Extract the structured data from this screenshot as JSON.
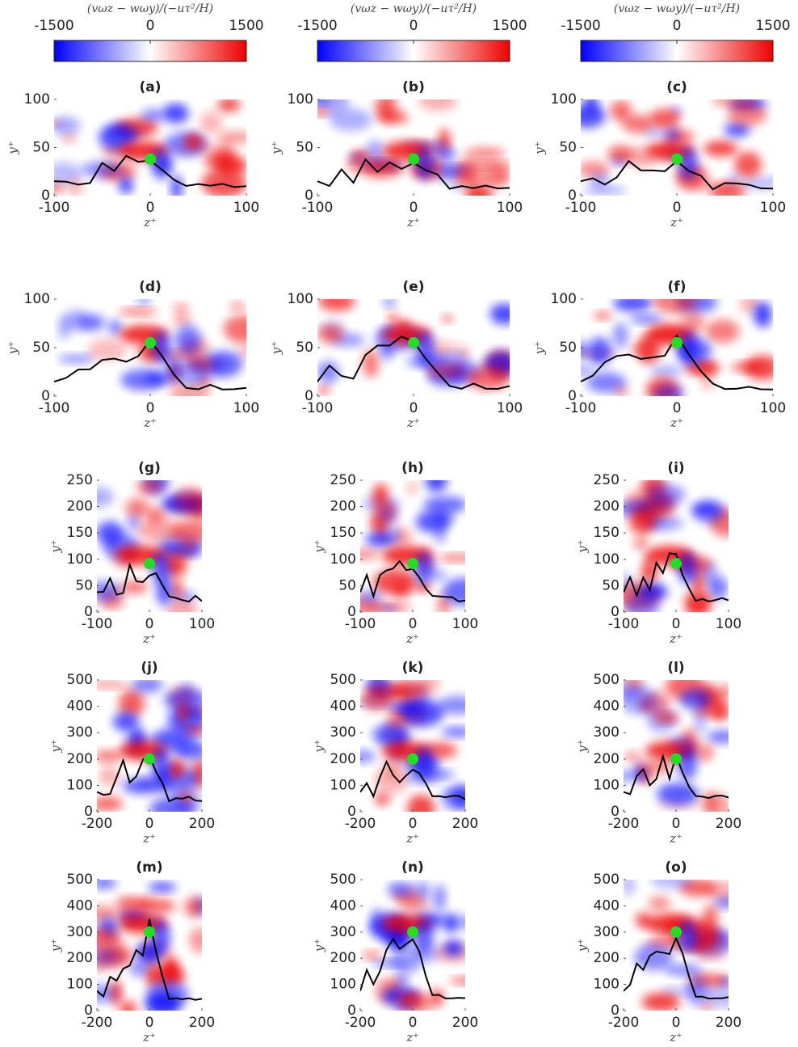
{
  "chart_data": [
    {
      "type": "heatmap",
      "title": "(a)",
      "xlabel": "z⁺",
      "ylabel": "y⁺",
      "xlim": [
        -100,
        100
      ],
      "ylim": [
        0,
        100
      ],
      "xticks": [
        -100,
        0,
        100
      ],
      "yticks": [
        0,
        50,
        100
      ],
      "point": [
        0,
        38
      ],
      "point_color": "#22dd22",
      "colorbar": {
        "label": "(vωz − wωy)/(−uτ²/H)",
        "lim": [
          -1500,
          1500
        ],
        "ticks": [
          -1500,
          0,
          1500
        ],
        "colors": [
          "#0000ff",
          "#ffffff",
          "#ee0000"
        ]
      }
    },
    {
      "type": "heatmap",
      "title": "(b)",
      "xlabel": "z⁺",
      "ylabel": "y⁺",
      "xlim": [
        -100,
        100
      ],
      "ylim": [
        0,
        100
      ],
      "xticks": [
        -100,
        0,
        100
      ],
      "yticks": [
        0,
        50,
        100
      ],
      "point": [
        0,
        38
      ],
      "point_color": "#22dd22",
      "colorbar": {
        "label": "(vωz − wωy)/(−uτ²/H)",
        "lim": [
          -1500,
          1500
        ],
        "ticks": [
          -1500,
          0,
          1500
        ],
        "colors": [
          "#0000ff",
          "#ffffff",
          "#ee0000"
        ]
      }
    },
    {
      "type": "heatmap",
      "title": "(c)",
      "xlabel": "z⁺",
      "ylabel": "y⁺",
      "xlim": [
        -100,
        100
      ],
      "ylim": [
        0,
        100
      ],
      "xticks": [
        -100,
        0,
        100
      ],
      "yticks": [
        0,
        50,
        100
      ],
      "point": [
        0,
        38
      ],
      "point_color": "#22dd22",
      "colorbar": {
        "label": "(vωz − wωy)/(−uτ²/H)",
        "lim": [
          -1500,
          1500
        ],
        "ticks": [
          -1500,
          0,
          1500
        ],
        "colors": [
          "#0000ff",
          "#ffffff",
          "#ee0000"
        ]
      }
    },
    {
      "type": "heatmap",
      "title": "(d)",
      "xlabel": "z⁺",
      "ylabel": "y⁺",
      "xlim": [
        -100,
        100
      ],
      "ylim": [
        0,
        100
      ],
      "xticks": [
        -100,
        0,
        100
      ],
      "yticks": [
        0,
        50,
        100
      ],
      "point": [
        0,
        55
      ],
      "point_color": "#22dd22"
    },
    {
      "type": "heatmap",
      "title": "(e)",
      "xlabel": "z⁺",
      "ylabel": "y⁺",
      "xlim": [
        -100,
        100
      ],
      "ylim": [
        0,
        100
      ],
      "xticks": [
        -100,
        0,
        100
      ],
      "yticks": [
        0,
        50,
        100
      ],
      "point": [
        0,
        55
      ],
      "point_color": "#22dd22"
    },
    {
      "type": "heatmap",
      "title": "(f)",
      "xlabel": "z⁺",
      "ylabel": "y⁺",
      "xlim": [
        -100,
        100
      ],
      "ylim": [
        0,
        100
      ],
      "xticks": [
        -100,
        0,
        100
      ],
      "yticks": [
        0,
        50,
        100
      ],
      "point": [
        0,
        55
      ],
      "point_color": "#22dd22"
    },
    {
      "type": "heatmap",
      "title": "(g)",
      "xlabel": "z⁺",
      "ylabel": "y⁺",
      "xlim": [
        -100,
        100
      ],
      "ylim": [
        0,
        250
      ],
      "xticks": [
        -100,
        0,
        100
      ],
      "yticks": [
        0,
        50,
        100,
        150,
        200,
        250
      ],
      "point": [
        0,
        92
      ],
      "point_color": "#22dd22"
    },
    {
      "type": "heatmap",
      "title": "(h)",
      "xlabel": "z⁺",
      "ylabel": "y⁺",
      "xlim": [
        -100,
        100
      ],
      "ylim": [
        0,
        250
      ],
      "xticks": [
        -100,
        0,
        100
      ],
      "yticks": [
        0,
        50,
        100,
        150,
        200,
        250
      ],
      "point": [
        0,
        92
      ],
      "point_color": "#22dd22"
    },
    {
      "type": "heatmap",
      "title": "(i)",
      "xlabel": "z⁺",
      "ylabel": "y⁺",
      "xlim": [
        -100,
        100
      ],
      "ylim": [
        0,
        250
      ],
      "xticks": [
        -100,
        0,
        100
      ],
      "yticks": [
        0,
        50,
        100,
        150,
        200,
        250
      ],
      "point": [
        0,
        92
      ],
      "point_color": "#22dd22"
    },
    {
      "type": "heatmap",
      "title": "(j)",
      "xlabel": "z⁺",
      "ylabel": "y⁺",
      "xlim": [
        -200,
        200
      ],
      "ylim": [
        0,
        500
      ],
      "xticks": [
        -200,
        0,
        200
      ],
      "yticks": [
        0,
        100,
        200,
        300,
        400,
        500
      ],
      "point": [
        0,
        200
      ],
      "point_color": "#22dd22"
    },
    {
      "type": "heatmap",
      "title": "(k)",
      "xlabel": "z⁺",
      "ylabel": "y⁺",
      "xlim": [
        -200,
        200
      ],
      "ylim": [
        0,
        500
      ],
      "xticks": [
        -200,
        0,
        200
      ],
      "yticks": [
        0,
        100,
        200,
        300,
        400,
        500
      ],
      "point": [
        0,
        200
      ],
      "point_color": "#22dd22"
    },
    {
      "type": "heatmap",
      "title": "(l)",
      "xlabel": "z⁺",
      "ylabel": "y⁺",
      "xlim": [
        -200,
        200
      ],
      "ylim": [
        0,
        500
      ],
      "xticks": [
        -200,
        0,
        200
      ],
      "yticks": [
        0,
        100,
        200,
        300,
        400,
        500
      ],
      "point": [
        0,
        200
      ],
      "point_color": "#22dd22"
    },
    {
      "type": "heatmap",
      "title": "(m)",
      "xlabel": "z⁺",
      "ylabel": "y⁺",
      "xlim": [
        -200,
        200
      ],
      "ylim": [
        0,
        500
      ],
      "xticks": [
        -200,
        0,
        200
      ],
      "yticks": [
        0,
        100,
        200,
        300,
        400,
        500
      ],
      "point": [
        0,
        300
      ],
      "point_color": "#22dd22"
    },
    {
      "type": "heatmap",
      "title": "(n)",
      "xlabel": "z⁺",
      "ylabel": "y⁺",
      "xlim": [
        -200,
        200
      ],
      "ylim": [
        0,
        500
      ],
      "xticks": [
        -200,
        0,
        200
      ],
      "yticks": [
        0,
        100,
        200,
        300,
        400,
        500
      ],
      "point": [
        0,
        300
      ],
      "point_color": "#22dd22"
    },
    {
      "type": "heatmap",
      "title": "(o)",
      "xlabel": "z⁺",
      "ylabel": "y⁺",
      "xlim": [
        -200,
        200
      ],
      "ylim": [
        0,
        500
      ],
      "xticks": [
        -200,
        0,
        200
      ],
      "yticks": [
        0,
        100,
        200,
        300,
        400,
        500
      ],
      "point": [
        0,
        300
      ],
      "point_color": "#22dd22"
    }
  ]
}
